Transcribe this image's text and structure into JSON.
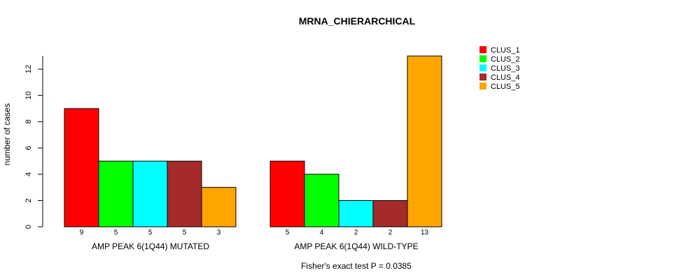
{
  "chart_data": {
    "type": "bar",
    "title": "MRNA_CHIERARCHICAL",
    "ylabel": "number of cases",
    "ylim": [
      0,
      13
    ],
    "yticks": [
      0,
      2,
      4,
      6,
      8,
      10,
      12
    ],
    "groups": [
      "AMP PEAK  6(1Q44) MUTATED",
      "AMP PEAK  6(1Q44) WILD-TYPE"
    ],
    "series": [
      {
        "name": "CLUS_1",
        "color": "#ff0000",
        "values": [
          9,
          5
        ]
      },
      {
        "name": "CLUS_2",
        "color": "#00ff00",
        "values": [
          5,
          4
        ]
      },
      {
        "name": "CLUS_3",
        "color": "#00ffff",
        "values": [
          5,
          2
        ]
      },
      {
        "name": "CLUS_4",
        "color": "#a52a2a",
        "values": [
          5,
          2
        ]
      },
      {
        "name": "CLUS_5",
        "color": "#ffa500",
        "values": [
          3,
          13
        ]
      }
    ],
    "footnote": "Fisher's exact test P = 0.0385",
    "legend_position": "top-right"
  }
}
